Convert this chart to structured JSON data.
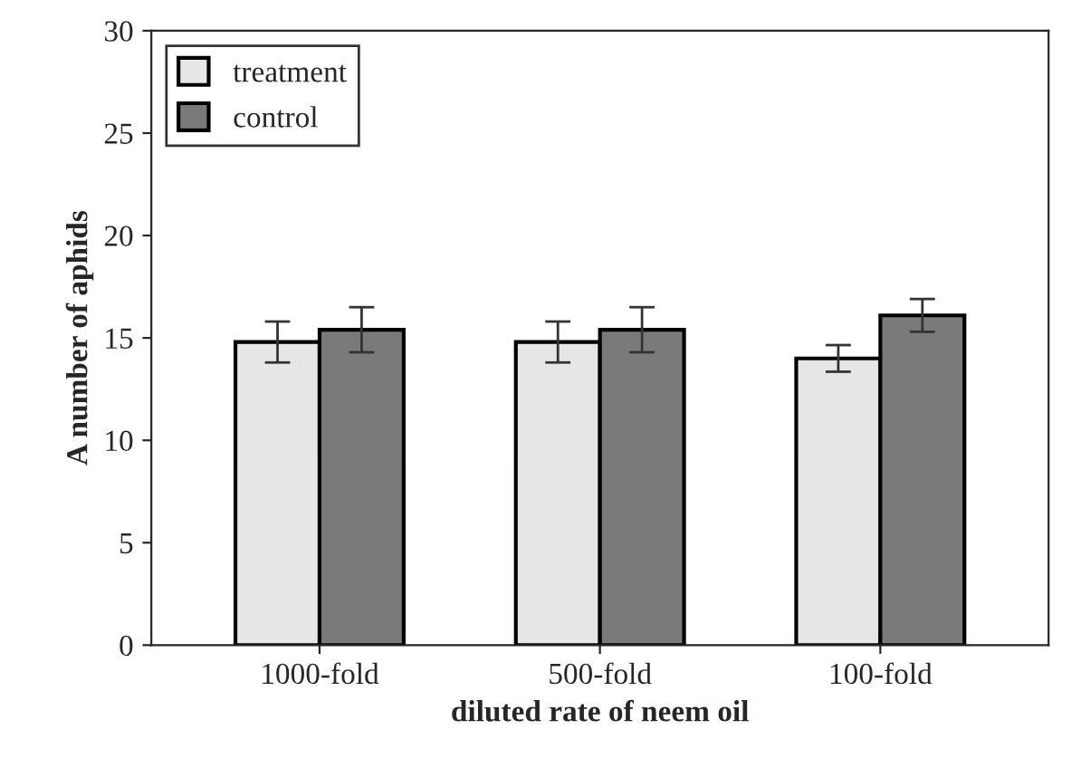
{
  "chart_data": {
    "type": "bar",
    "xlabel": "diluted rate of neem oil",
    "ylabel": "A number of aphids",
    "categories": [
      "1000-fold",
      "500-fold",
      "100-fold"
    ],
    "series": [
      {
        "name": "treatment",
        "color": "#e6e6e6",
        "values": [
          14.8,
          14.8,
          14.0
        ],
        "errors": [
          1.0,
          1.0,
          0.65
        ]
      },
      {
        "name": "control",
        "color": "#7a7a7a",
        "values": [
          15.4,
          15.4,
          16.1
        ],
        "errors": [
          1.1,
          1.1,
          0.8
        ]
      }
    ],
    "ylim": [
      0,
      30
    ],
    "yticks": [
      0,
      5,
      10,
      15,
      20,
      25,
      30
    ],
    "grid": false,
    "legend": "top left"
  }
}
